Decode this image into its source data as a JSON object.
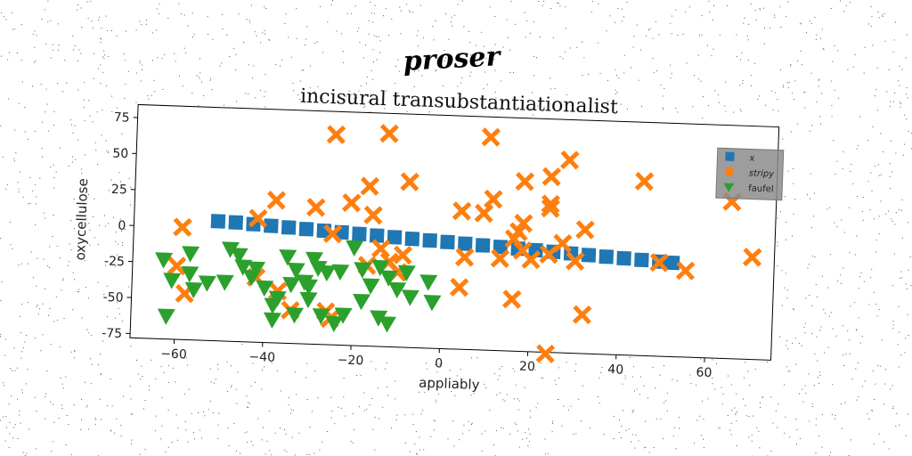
{
  "chart_data": {
    "type": "scatter",
    "suptitle": "proser",
    "title": "incisural transubstantiationalist",
    "xlabel": "appliably",
    "ylabel": "oxycellulose",
    "xlim": [
      -70,
      75
    ],
    "ylim": [
      -78,
      84
    ],
    "xticks": [
      -60,
      -40,
      -20,
      0,
      20,
      40,
      60
    ],
    "yticks": [
      -75,
      -50,
      -25,
      0,
      25,
      50,
      75
    ],
    "grid": false,
    "legend_position": "top-right",
    "series": [
      {
        "name": "x",
        "marker": "square",
        "color": "#1f77b4",
        "points": [
          [
            -51,
            5
          ],
          [
            -47,
            4.6
          ],
          [
            -43,
            3.8
          ],
          [
            -39,
            3.1
          ],
          [
            -35,
            2.4
          ],
          [
            -31,
            1.7
          ],
          [
            -27,
            1
          ],
          [
            -23,
            0.3
          ],
          [
            -19,
            -0.4
          ],
          [
            -15,
            -1.1
          ],
          [
            -11,
            -1.8
          ],
          [
            -7,
            -2.5
          ],
          [
            -3,
            -3.2
          ],
          [
            1,
            -3.9
          ],
          [
            5,
            -4.6
          ],
          [
            9,
            -5.3
          ],
          [
            13,
            -6
          ],
          [
            17,
            -6.7
          ],
          [
            21,
            -7.4
          ],
          [
            25,
            -8.1
          ],
          [
            29,
            -8.8
          ],
          [
            33,
            -9.5
          ],
          [
            37,
            -10.2
          ],
          [
            41,
            -10.9
          ],
          [
            45,
            -11.6
          ],
          [
            49,
            -12.3
          ],
          [
            52,
            -12.8
          ]
        ]
      },
      {
        "name": "stripy",
        "marker": "x",
        "color": "#ff7f0e",
        "points": [
          [
            -25,
            68
          ],
          [
            -13,
            70
          ],
          [
            10,
            70
          ],
          [
            -8,
            37
          ],
          [
            -17,
            33
          ],
          [
            -38,
            21
          ],
          [
            -21,
            21
          ],
          [
            -29,
            17
          ],
          [
            -16,
            13
          ],
          [
            -42,
            8
          ],
          [
            -59,
            0
          ],
          [
            -25,
            -1
          ],
          [
            -60,
            -27
          ],
          [
            -58,
            -46
          ],
          [
            -42,
            -33
          ],
          [
            -37,
            -42
          ],
          [
            -34,
            -55
          ],
          [
            -26,
            -55
          ],
          [
            -25,
            -60
          ],
          [
            -14,
            -10
          ],
          [
            -12,
            -19
          ],
          [
            -9,
            -14
          ],
          [
            -10,
            -26
          ],
          [
            -17,
            -22
          ],
          [
            4,
            18
          ],
          [
            9,
            17
          ],
          [
            11,
            27
          ],
          [
            18,
            40
          ],
          [
            24,
            44
          ],
          [
            28,
            56
          ],
          [
            45,
            43
          ],
          [
            65,
            31
          ],
          [
            70,
            -7
          ],
          [
            55,
            -18
          ],
          [
            49,
            -13
          ],
          [
            32,
            8
          ],
          [
            27,
            -2
          ],
          [
            24,
            -10
          ],
          [
            18,
            -8
          ],
          [
            16,
            0
          ],
          [
            18,
            11
          ],
          [
            17,
            5
          ],
          [
            24,
            25
          ],
          [
            24,
            22
          ],
          [
            30,
            -14
          ],
          [
            20,
            -14
          ],
          [
            13,
            -14
          ],
          [
            5,
            -14
          ],
          [
            4,
            -35
          ],
          [
            16,
            -42
          ],
          [
            32,
            -51
          ],
          [
            24,
            -79
          ]
        ]
      },
      {
        "name": "faufel",
        "marker": "triangle-down",
        "color": "#2ca02c",
        "points": [
          [
            -63,
            -23
          ],
          [
            -61,
            -37
          ],
          [
            -57,
            -32
          ],
          [
            -56,
            -43
          ],
          [
            -57,
            -18
          ],
          [
            -53,
            -38
          ],
          [
            -49,
            -37
          ],
          [
            -48,
            -14
          ],
          [
            -46,
            -18
          ],
          [
            -45,
            -26
          ],
          [
            -43,
            -33
          ],
          [
            -42,
            -27
          ],
          [
            -40,
            -40
          ],
          [
            -38,
            -52
          ],
          [
            -37,
            -47
          ],
          [
            -38,
            -62
          ],
          [
            -35,
            -18
          ],
          [
            -33,
            -27
          ],
          [
            -31,
            -35
          ],
          [
            -30,
            -38
          ],
          [
            -29,
            -19
          ],
          [
            -28,
            -25
          ],
          [
            -26,
            -28
          ],
          [
            -27,
            -58
          ],
          [
            -24,
            -63
          ],
          [
            -22,
            -57
          ],
          [
            -20,
            -10
          ],
          [
            -18,
            -25
          ],
          [
            -16,
            -36
          ],
          [
            -14,
            -23
          ],
          [
            -14,
            -58
          ],
          [
            -12,
            -30
          ],
          [
            -10,
            -38
          ],
          [
            -8,
            -26
          ],
          [
            -12,
            -62
          ],
          [
            -18,
            -47
          ],
          [
            -3,
            -32
          ],
          [
            -2,
            -46
          ],
          [
            -62,
            -62
          ],
          [
            -33,
            -58
          ],
          [
            -23,
            -27
          ],
          [
            -7,
            -43
          ],
          [
            -30,
            -47
          ],
          [
            -34,
            -37
          ]
        ]
      }
    ]
  }
}
